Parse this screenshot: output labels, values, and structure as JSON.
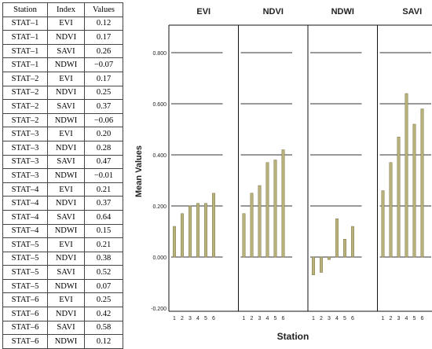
{
  "table": {
    "headers": [
      "Station",
      "Index",
      "Values"
    ],
    "rows": [
      [
        "STAT–1",
        "EVI",
        "0.12"
      ],
      [
        "STAT–1",
        "NDVI",
        "0.17"
      ],
      [
        "STAT–1",
        "SAVI",
        "0.26"
      ],
      [
        "STAT–1",
        "NDWI",
        "−0.07"
      ],
      [
        "STAT–2",
        "EVI",
        "0.17"
      ],
      [
        "STAT–2",
        "NDVI",
        "0.25"
      ],
      [
        "STAT–2",
        "SAVI",
        "0.37"
      ],
      [
        "STAT–2",
        "NDWI",
        "−0.06"
      ],
      [
        "STAT–3",
        "EVI",
        "0.20"
      ],
      [
        "STAT–3",
        "NDVI",
        "0.28"
      ],
      [
        "STAT–3",
        "SAVI",
        "0.47"
      ],
      [
        "STAT–3",
        "NDWI",
        "−0.01"
      ],
      [
        "STAT–4",
        "EVI",
        "0.21"
      ],
      [
        "STAT–4",
        "NDVI",
        "0.37"
      ],
      [
        "STAT–4",
        "SAVI",
        "0.64"
      ],
      [
        "STAT–4",
        "NDWI",
        "0.15"
      ],
      [
        "STAT–5",
        "EVI",
        "0.21"
      ],
      [
        "STAT–5",
        "NDVI",
        "0.38"
      ],
      [
        "STAT–5",
        "SAVI",
        "0.52"
      ],
      [
        "STAT–5",
        "NDWI",
        "0.07"
      ],
      [
        "STAT–6",
        "EVI",
        "0.25"
      ],
      [
        "STAT–6",
        "NDVI",
        "0.42"
      ],
      [
        "STAT–6",
        "SAVI",
        "0.58"
      ],
      [
        "STAT–6",
        "NDWI",
        "0.12"
      ]
    ]
  },
  "chart_data": {
    "type": "bar",
    "xlabel": "Station",
    "ylabel": "Mean Values",
    "ylim": [
      -0.2,
      0.9
    ],
    "yticks": [
      -0.2,
      0.0,
      0.2,
      0.4,
      0.6,
      0.8
    ],
    "ytick_labels": [
      "-0.200",
      "0.000",
      "0.200",
      "0.400",
      "0.600",
      "0.800"
    ],
    "categories": [
      "1",
      "2",
      "3",
      "4",
      "5",
      "6"
    ],
    "grid": true,
    "bar_color": "#b9b27c",
    "bar_edge_color": "#7d7645",
    "panels": [
      {
        "name": "EVI",
        "values": [
          0.12,
          0.17,
          0.2,
          0.21,
          0.21,
          0.25
        ]
      },
      {
        "name": "NDVI",
        "values": [
          0.17,
          0.25,
          0.28,
          0.37,
          0.38,
          0.42
        ]
      },
      {
        "name": "NDWI",
        "values": [
          -0.07,
          -0.06,
          -0.01,
          0.15,
          0.07,
          0.12
        ]
      },
      {
        "name": "SAVI",
        "values": [
          0.26,
          0.37,
          0.47,
          0.64,
          0.52,
          0.58
        ]
      }
    ]
  }
}
